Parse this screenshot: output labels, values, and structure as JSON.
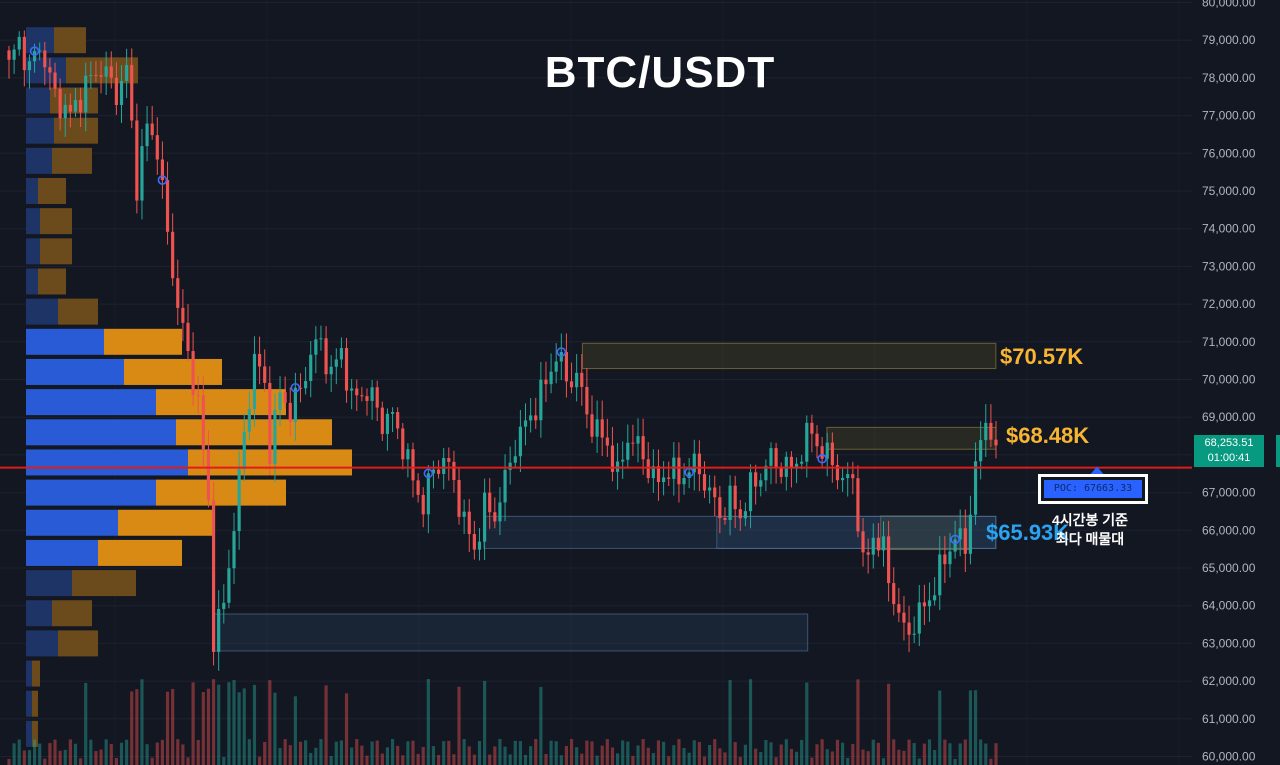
{
  "chart_data": {
    "type": "candlestick",
    "title": "BTC/USDT",
    "symbol": "BTC/USDT",
    "ylim": [
      60000,
      80000
    ],
    "y_ticks": [
      "60,000.00",
      "61,000.00",
      "62,000.00",
      "63,000.00",
      "64,000.00",
      "65,000.00",
      "66,000.00",
      "67,000.00",
      "68,000.00",
      "69,000.00",
      "70,000.00",
      "71,000.00",
      "72,000.00",
      "73,000.00",
      "74,000.00",
      "75,000.00",
      "76,000.00",
      "77,000.00",
      "78,000.00",
      "79,000.00",
      "80,000.00"
    ],
    "last_price": "68,253.51",
    "countdown": "01:00:41",
    "poc_label": "POC: 67663.33",
    "poc_price": 67663.33,
    "poc_caption_line1": "4시간봉 기준",
    "poc_caption_line2": "최다 매물대",
    "annotations": [
      {
        "text": "$70.57K",
        "price": 70570,
        "color": "#f7b531"
      },
      {
        "text": "$68.48K",
        "price": 68480,
        "color": "#f7b531"
      },
      {
        "text": "$65.93K",
        "price": 65930,
        "color": "#29a3f2"
      }
    ],
    "zones": [
      {
        "name": "resistance-zone-70k",
        "x0": 0.455,
        "x1": 0.778,
        "y0": 70290,
        "y1": 70960,
        "kind": "yellow"
      },
      {
        "name": "resistance-zone-68k",
        "x0": 0.646,
        "x1": 0.778,
        "y0": 68150,
        "y1": 68730,
        "kind": "yellow"
      },
      {
        "name": "demand-zone-65k-yellow",
        "x0": 0.688,
        "x1": 0.758,
        "y0": 65490,
        "y1": 66380,
        "kind": "yellow"
      },
      {
        "name": "demand-zone-65k-left",
        "x0": 0.378,
        "x1": 0.778,
        "y0": 65520,
        "y1": 66370,
        "kind": "blue"
      },
      {
        "name": "demand-zone-65k-right",
        "x0": 0.56,
        "x1": 0.778,
        "y0": 65520,
        "y1": 66370,
        "kind": "blue"
      },
      {
        "name": "demand-zone-63k",
        "x0": 0.167,
        "x1": 0.631,
        "y0": 62800,
        "y1": 63780,
        "kind": "blue"
      }
    ],
    "volume_profile": [
      {
        "price": 79000,
        "buy": 28,
        "sell": 32
      },
      {
        "price": 78200,
        "buy": 40,
        "sell": 72
      },
      {
        "price": 77400,
        "buy": 24,
        "sell": 48
      },
      {
        "price": 76600,
        "buy": 28,
        "sell": 44
      },
      {
        "price": 75800,
        "buy": 26,
        "sell": 40
      },
      {
        "price": 75000,
        "buy": 12,
        "sell": 28
      },
      {
        "price": 74200,
        "buy": 14,
        "sell": 32
      },
      {
        "price": 73400,
        "buy": 14,
        "sell": 32
      },
      {
        "price": 72600,
        "buy": 12,
        "sell": 28
      },
      {
        "price": 71800,
        "buy": 32,
        "sell": 40
      },
      {
        "price": 71000,
        "buy": 78,
        "sell": 78
      },
      {
        "price": 70200,
        "buy": 98,
        "sell": 98
      },
      {
        "price": 69400,
        "buy": 130,
        "sell": 130
      },
      {
        "price": 68600,
        "buy": 150,
        "sell": 156
      },
      {
        "price": 67800,
        "buy": 162,
        "sell": 164
      },
      {
        "price": 67000,
        "buy": 130,
        "sell": 130
      },
      {
        "price": 66200,
        "buy": 92,
        "sell": 96
      },
      {
        "price": 65400,
        "buy": 72,
        "sell": 84
      },
      {
        "price": 64600,
        "buy": 46,
        "sell": 64
      },
      {
        "price": 63800,
        "buy": 26,
        "sell": 40
      },
      {
        "price": 63000,
        "buy": 32,
        "sell": 40
      },
      {
        "price": 62200,
        "buy": 6,
        "sell": 8
      },
      {
        "price": 61400,
        "buy": 6,
        "sell": 6
      },
      {
        "price": 60600,
        "buy": 6,
        "sell": 6
      }
    ],
    "close_path": [
      [
        0,
        78300
      ],
      [
        2,
        79000
      ],
      [
        4,
        78200
      ],
      [
        6,
        78900
      ],
      [
        9,
        77500
      ],
      [
        12,
        77000
      ],
      [
        15,
        77800
      ],
      [
        18,
        78300
      ],
      [
        21,
        77600
      ],
      [
        23,
        78200
      ],
      [
        25,
        75200
      ],
      [
        27,
        76700
      ],
      [
        29,
        76200
      ],
      [
        31,
        73800
      ],
      [
        33,
        72000
      ],
      [
        35,
        70600
      ],
      [
        37,
        69400
      ],
      [
        39,
        66700
      ],
      [
        40,
        63200
      ],
      [
        42,
        64000
      ],
      [
        44,
        66200
      ],
      [
        46,
        68500
      ],
      [
        48,
        70600
      ],
      [
        50,
        69800
      ],
      [
        51,
        68200
      ],
      [
        53,
        69600
      ],
      [
        55,
        69200
      ],
      [
        57,
        69700
      ],
      [
        59,
        70700
      ],
      [
        61,
        71000
      ],
      [
        63,
        70100
      ],
      [
        65,
        70800
      ],
      [
        67,
        69400
      ],
      [
        69,
        69700
      ],
      [
        71,
        69500
      ],
      [
        73,
        68900
      ],
      [
        75,
        69000
      ],
      [
        77,
        68300
      ],
      [
        79,
        67300
      ],
      [
        81,
        66700
      ],
      [
        83,
        67600
      ],
      [
        85,
        67900
      ],
      [
        87,
        67300
      ],
      [
        89,
        66200
      ],
      [
        91,
        65500
      ],
      [
        93,
        66600
      ],
      [
        95,
        66400
      ],
      [
        97,
        67300
      ],
      [
        99,
        68300
      ],
      [
        101,
        68800
      ],
      [
        103,
        69300
      ],
      [
        105,
        69900
      ],
      [
        107,
        70700
      ],
      [
        109,
        70000
      ],
      [
        111,
        70100
      ],
      [
        113,
        69100
      ],
      [
        115,
        68600
      ],
      [
        117,
        68300
      ],
      [
        119,
        67400
      ],
      [
        121,
        68500
      ],
      [
        123,
        68200
      ],
      [
        125,
        67700
      ],
      [
        127,
        67200
      ],
      [
        129,
        67700
      ],
      [
        131,
        67300
      ],
      [
        133,
        67700
      ],
      [
        135,
        67600
      ],
      [
        137,
        67000
      ],
      [
        139,
        66400
      ],
      [
        141,
        66800
      ],
      [
        143,
        66400
      ],
      [
        145,
        67100
      ],
      [
        147,
        67500
      ],
      [
        149,
        67900
      ],
      [
        151,
        67700
      ],
      [
        153,
        67600
      ],
      [
        155,
        68100
      ],
      [
        157,
        68700
      ],
      [
        159,
        68000
      ],
      [
        161,
        67900
      ],
      [
        163,
        67200
      ],
      [
        165,
        67500
      ],
      [
        167,
        65000
      ],
      [
        169,
        65900
      ],
      [
        171,
        65400
      ],
      [
        173,
        64200
      ],
      [
        175,
        63300
      ],
      [
        177,
        63500
      ],
      [
        179,
        64000
      ],
      [
        181,
        64500
      ],
      [
        183,
        65300
      ],
      [
        185,
        65800
      ],
      [
        187,
        65600
      ],
      [
        189,
        67600
      ],
      [
        191,
        69000
      ],
      [
        193,
        68253.51
      ]
    ],
    "signal_markers": [
      0.019,
      0.118,
      0.219,
      0.32,
      0.423,
      0.523,
      0.625,
      0.728
    ]
  }
}
